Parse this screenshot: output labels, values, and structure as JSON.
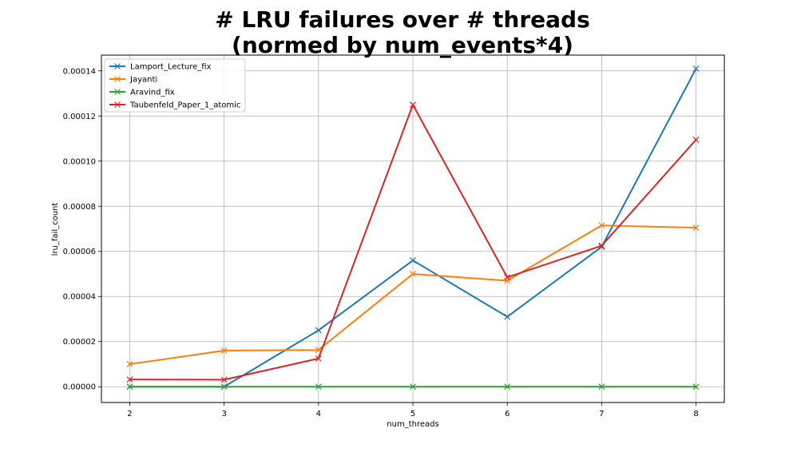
{
  "chart_data": {
    "type": "line",
    "title_line1": "# LRU failures over # threads",
    "title_line2": "(normed by num_events*4)",
    "xlabel": "num_threads",
    "ylabel": "lru_fail_count",
    "x": [
      2,
      3,
      4,
      5,
      6,
      7,
      8
    ],
    "xlim": [
      1.7,
      8.3
    ],
    "ylim": [
      -7e-06,
      0.000147
    ],
    "yticks": [
      0,
      2e-05,
      4e-05,
      6e-05,
      8e-05,
      0.0001,
      0.00012,
      0.00014
    ],
    "ytick_labels": [
      "0.00000",
      "0.00002",
      "0.00004",
      "0.00006",
      "0.00008",
      "0.00010",
      "0.00012",
      "0.00014"
    ],
    "xtick_labels": [
      "2",
      "3",
      "4",
      "5",
      "6",
      "7",
      "8"
    ],
    "grid": true,
    "legend_position": "top-left",
    "marker": "x",
    "series": [
      {
        "name": "Lamport_Lecture_fix",
        "color": "#1f77b4",
        "values": [
          0,
          0,
          2.5e-05,
          5.6e-05,
          3.1e-05,
          6.2e-05,
          0.000141
        ]
      },
      {
        "name": "Jayanti",
        "color": "#ff7f0e",
        "values": [
          1e-05,
          1.6e-05,
          1.63e-05,
          5e-05,
          4.7e-05,
          7.15e-05,
          7.05e-05
        ]
      },
      {
        "name": "Aravind_fix",
        "color": "#2ca02c",
        "values": [
          0,
          0,
          0,
          0,
          0,
          0,
          0
        ]
      },
      {
        "name": "Taubenfeld_Paper_1_atomic",
        "color": "#d62728",
        "values": [
          3.2e-06,
          3.1e-06,
          1.25e-05,
          0.000125,
          4.85e-05,
          6.25e-05,
          0.0001095
        ]
      }
    ]
  }
}
